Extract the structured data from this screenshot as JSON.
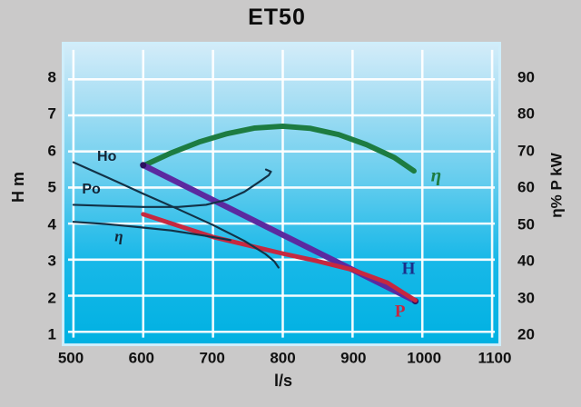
{
  "page": {
    "background": "#cac9c9"
  },
  "chart_data": {
    "type": "line",
    "title": "ET50",
    "xlabel": "l/s",
    "ylabel_left": "H m",
    "ylabel_right": "η% P kW",
    "grid": true,
    "x_axis": {
      "range": [
        500,
        1100
      ],
      "ticks": [
        500,
        600,
        700,
        800,
        900,
        1000,
        1100
      ]
    },
    "y_axis_left": {
      "range": [
        1,
        8
      ],
      "ticks": [
        8,
        7,
        6,
        5,
        4,
        3,
        2,
        1
      ]
    },
    "y_axis_right": {
      "range": [
        20,
        90
      ],
      "ticks": [
        90,
        80,
        70,
        60,
        50,
        40,
        30,
        20
      ]
    },
    "series": [
      {
        "name": "eta-new",
        "legend": "η",
        "axis": "right",
        "color": "#1d7c41",
        "width": 6,
        "caps": false,
        "points": [
          [
            600,
            66
          ],
          [
            640,
            69.6
          ],
          [
            680,
            72.6
          ],
          [
            720,
            74.9
          ],
          [
            760,
            76.5
          ],
          [
            800,
            77
          ],
          [
            840,
            76.4
          ],
          [
            880,
            74.7
          ],
          [
            920,
            71.9
          ],
          [
            960,
            68.3
          ],
          [
            988,
            64.6
          ]
        ]
      },
      {
        "name": "H-new",
        "legend": "H",
        "axis": "left",
        "color": "#5b2aa0",
        "width": 6.5,
        "caps": true,
        "cap_color": "#2d1260",
        "points": [
          [
            600,
            5.62
          ],
          [
            990,
            1.85
          ]
        ]
      },
      {
        "name": "P-new",
        "legend": "P",
        "axis": "left",
        "color": "#c62840",
        "width": 5,
        "caps": false,
        "points": [
          [
            600,
            4.26
          ],
          [
            650,
            3.94
          ],
          [
            700,
            3.63
          ],
          [
            750,
            3.4
          ],
          [
            800,
            3.17
          ],
          [
            850,
            2.96
          ],
          [
            900,
            2.72
          ],
          [
            950,
            2.36
          ],
          [
            990,
            1.87
          ]
        ]
      },
      {
        "name": "Ho-original",
        "legend": "Ho",
        "axis": "left",
        "color": "#123247",
        "width": 2.2,
        "caps": false,
        "points": [
          [
            500,
            5.7
          ],
          [
            550,
            5.27
          ],
          [
            600,
            4.83
          ],
          [
            650,
            4.4
          ],
          [
            700,
            3.96
          ],
          [
            745,
            3.52
          ],
          [
            775,
            3.16
          ],
          [
            788,
            2.95
          ],
          [
            794,
            2.78
          ]
        ]
      },
      {
        "name": "Po-original",
        "legend": "Po",
        "axis": "left",
        "color": "#123247",
        "width": 2.2,
        "caps": false,
        "points": [
          [
            500,
            4.52
          ],
          [
            550,
            4.49
          ],
          [
            600,
            4.46
          ],
          [
            650,
            4.46
          ],
          [
            690,
            4.52
          ],
          [
            720,
            4.66
          ],
          [
            745,
            4.88
          ],
          [
            765,
            5.14
          ],
          [
            780,
            5.34
          ],
          [
            783,
            5.44
          ],
          [
            776,
            5.5
          ]
        ]
      },
      {
        "name": "eta-original",
        "legend": "η",
        "axis": "left",
        "color": "#123247",
        "width": 2.2,
        "caps": false,
        "points": [
          [
            500,
            4.05
          ],
          [
            545,
            3.99
          ],
          [
            590,
            3.91
          ],
          [
            640,
            3.81
          ],
          [
            690,
            3.66
          ],
          [
            725,
            3.54
          ]
        ]
      }
    ],
    "annotations": [
      {
        "text": "Ho",
        "x": 551,
        "y": 5.82,
        "color": "#122436",
        "font": "sans-bold",
        "size": 16
      },
      {
        "text": "Po",
        "x": 529,
        "y": 4.93,
        "color": "#122436",
        "font": "sans-bold",
        "size": 16
      },
      {
        "text": "η",
        "x": 568,
        "y": 3.68,
        "color": "#122436",
        "font": "serif-italic",
        "size": 17
      },
      {
        "text": "η",
        "x": 1017,
        "y": 5.33,
        "color": "#1d7c41",
        "font": "serif-italic",
        "size": 21
      },
      {
        "text": "H",
        "x": 978,
        "y": 2.77,
        "color": "#1b2f8a",
        "font": "serif-bold",
        "size": 19
      },
      {
        "text": "P",
        "x": 966,
        "y": 1.62,
        "color": "#c62840",
        "font": "serif-bold",
        "size": 19
      }
    ],
    "style": {
      "plot_border_color": "#cfeefb",
      "grid_color": "#ffffff",
      "background_top": "#d2ecf9",
      "background_bottom": "#00b1e2"
    }
  }
}
